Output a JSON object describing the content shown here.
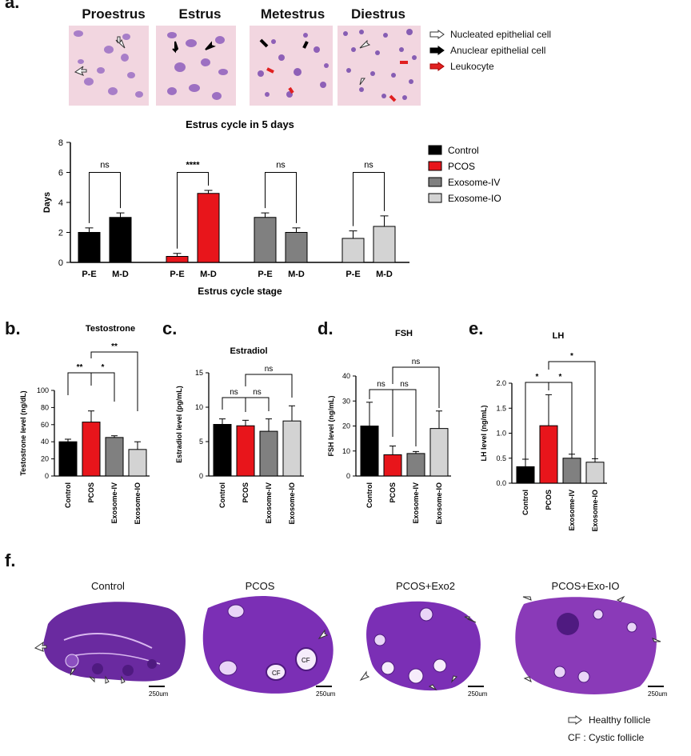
{
  "panel_a": {
    "label": "a.",
    "stages": [
      "Proestrus",
      "Estrus",
      "Metestrus",
      "Diestrus"
    ],
    "arrow_legend": [
      {
        "label": "Nucleated epithelial cell",
        "color": "#ffffff"
      },
      {
        "label": "Anuclear epithelial cell",
        "color": "#000000"
      },
      {
        "label": "Leukocyte",
        "color": "#e02020"
      }
    ]
  },
  "panel_b": {
    "label": "b."
  },
  "panel_c": {
    "label": "c."
  },
  "panel_d": {
    "label": "d."
  },
  "panel_e": {
    "label": "e."
  },
  "panel_f": {
    "label": "f.",
    "titles": [
      "Control",
      "PCOS",
      "PCOS+Exo2",
      "PCOS+Exo-IO"
    ],
    "scale_bar": "250um",
    "legend_healthy": "Healthy follicle",
    "legend_cystic": "CF : Cystic follicle",
    "cf_label": "CF"
  },
  "chart_data": [
    {
      "type": "bar",
      "title": "Estrus cycle in 5 days",
      "xlabel": "Estrus cycle stage",
      "ylabel": "Days",
      "ylim": [
        0,
        8
      ],
      "yticks": [
        "0",
        "2",
        "4",
        "6",
        "8"
      ],
      "categories": [
        "P-E",
        "M-D"
      ],
      "groups": [
        {
          "name": "Control",
          "color": "#000000",
          "values": [
            2.0,
            3.0
          ],
          "err": [
            0.3,
            0.3
          ],
          "sig": "ns"
        },
        {
          "name": "PCOS",
          "color": "#e8151b",
          "values": [
            0.4,
            4.6
          ],
          "err": [
            0.2,
            0.2
          ],
          "sig": "****"
        },
        {
          "name": "Exosome-IV",
          "color": "#808080",
          "values": [
            3.0,
            2.0
          ],
          "err": [
            0.3,
            0.3
          ],
          "sig": "ns"
        },
        {
          "name": "Exosome-IO",
          "color": "#d3d3d3",
          "values": [
            1.6,
            2.4
          ],
          "err": [
            0.5,
            0.7
          ],
          "sig": "ns"
        }
      ],
      "legend": [
        "Control",
        "PCOS",
        "Exosome-IV",
        "Exosome-IO"
      ]
    },
    {
      "type": "bar",
      "title": "Testostrone",
      "ylabel": "Testostrone level (ng/dL)",
      "ylim": [
        0,
        100
      ],
      "yticks": [
        "0",
        "20",
        "40",
        "60",
        "80",
        "100"
      ],
      "categories": [
        "Control",
        "PCOS",
        "Exosome-IV",
        "Exosome-IO"
      ],
      "colors": [
        "#000000",
        "#e8151b",
        "#808080",
        "#d3d3d3"
      ],
      "values": [
        40,
        63,
        45,
        31
      ],
      "err": [
        3,
        13,
        2,
        9
      ],
      "comparisons": [
        {
          "from": 1,
          "to": 0,
          "label": "**"
        },
        {
          "from": 1,
          "to": 2,
          "label": "*"
        },
        {
          "from": 1,
          "to": 3,
          "label": "**"
        }
      ]
    },
    {
      "type": "bar",
      "title": "Estradiol",
      "ylabel": "Estradiol level (pg/mL)",
      "ylim": [
        0,
        15
      ],
      "yticks": [
        "0",
        "5",
        "10",
        "15"
      ],
      "categories": [
        "Control",
        "PCOS",
        "Exosome-IV",
        "Exosome-IO"
      ],
      "colors": [
        "#000000",
        "#e8151b",
        "#808080",
        "#d3d3d3"
      ],
      "values": [
        7.5,
        7.3,
        6.5,
        8.0
      ],
      "err": [
        0.8,
        0.8,
        1.8,
        2.2
      ],
      "comparisons": [
        {
          "from": 1,
          "to": 0,
          "label": "ns"
        },
        {
          "from": 1,
          "to": 2,
          "label": "ns"
        },
        {
          "from": 1,
          "to": 3,
          "label": "ns"
        }
      ]
    },
    {
      "type": "bar",
      "title": "FSH",
      "ylabel": "FSH level (ng/mL)",
      "ylim": [
        0,
        40
      ],
      "yticks": [
        "0",
        "10",
        "20",
        "30",
        "40"
      ],
      "categories": [
        "Control",
        "PCOS",
        "Exosome-IV",
        "Exosome-IO"
      ],
      "colors": [
        "#000000",
        "#e8151b",
        "#808080",
        "#d3d3d3"
      ],
      "values": [
        20,
        8.5,
        9,
        19
      ],
      "err": [
        9.5,
        3.5,
        0.8,
        7
      ],
      "comparisons": [
        {
          "from": 1,
          "to": 0,
          "label": "ns"
        },
        {
          "from": 1,
          "to": 2,
          "label": "ns"
        },
        {
          "from": 1,
          "to": 3,
          "label": "ns"
        }
      ]
    },
    {
      "type": "bar",
      "title": "LH",
      "ylabel": "LH level (ng/mL)",
      "ylim": [
        0,
        2.0
      ],
      "yticks": [
        "0.0",
        "0.5",
        "1.0",
        "1.5",
        "2.0"
      ],
      "categories": [
        "Control",
        "PCOS",
        "Exosome-IV",
        "Exosome-IO"
      ],
      "colors": [
        "#000000",
        "#e8151b",
        "#808080",
        "#d3d3d3"
      ],
      "values": [
        0.33,
        1.15,
        0.5,
        0.42
      ],
      "err": [
        0.15,
        0.62,
        0.08,
        0.07
      ],
      "comparisons": [
        {
          "from": 1,
          "to": 0,
          "label": "*"
        },
        {
          "from": 1,
          "to": 2,
          "label": "*"
        },
        {
          "from": 1,
          "to": 3,
          "label": "*"
        }
      ]
    }
  ]
}
